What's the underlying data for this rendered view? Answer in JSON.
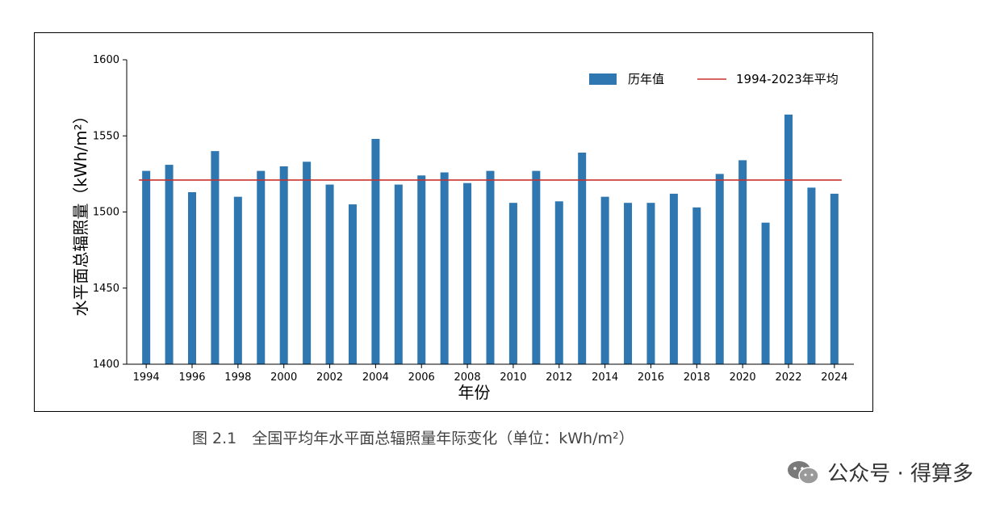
{
  "chart_data": {
    "type": "bar",
    "x": [
      1994,
      1995,
      1996,
      1997,
      1998,
      1999,
      2000,
      2001,
      2002,
      2003,
      2004,
      2005,
      2006,
      2007,
      2008,
      2009,
      2010,
      2011,
      2012,
      2013,
      2014,
      2015,
      2016,
      2017,
      2018,
      2019,
      2020,
      2021,
      2022,
      2023,
      2024
    ],
    "series": [
      {
        "name": "历年值",
        "values": [
          1527,
          1531,
          1513,
          1540,
          1510,
          1527,
          1530,
          1533,
          1518,
          1505,
          1548,
          1518,
          1524,
          1526,
          1519,
          1527,
          1506,
          1527,
          1507,
          1539,
          1510,
          1506,
          1506,
          1512,
          1503,
          1525,
          1534,
          1493,
          1564,
          1516,
          1512
        ]
      }
    ],
    "reference_line": {
      "name": "1994-2023年平均",
      "value": 1521
    },
    "xlabel": "年份",
    "ylabel": "水平面总辐照量（kWh/m²）",
    "ylim": [
      1400,
      1600
    ],
    "yticks": [
      1400,
      1450,
      1500,
      1550,
      1600
    ],
    "xticks": [
      1994,
      1996,
      1998,
      2000,
      2002,
      2004,
      2006,
      2008,
      2010,
      2012,
      2014,
      2016,
      2018,
      2020,
      2022,
      2024
    ],
    "grid": false,
    "legend_position": "top-right",
    "colors": {
      "bar": "#2e77b0",
      "line": "#c8322e"
    }
  },
  "caption": "图 2.1　全国平均年水平面总辐照量年际变化（单位：kWh/m²）",
  "brand": "公众号 · 得算多"
}
